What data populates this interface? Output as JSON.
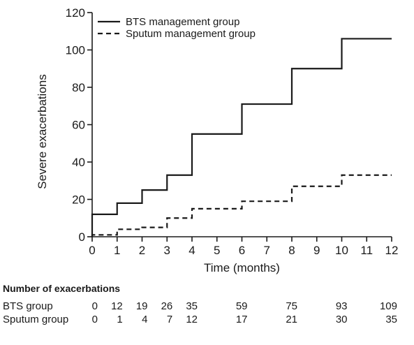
{
  "chart_data": {
    "type": "line",
    "step": true,
    "xlabel": "Time (months)",
    "ylabel": "Severe exacerbations",
    "xlim": [
      0,
      12
    ],
    "ylim": [
      0,
      120
    ],
    "x_ticks": [
      "0",
      "1",
      "2",
      "3",
      "4",
      "5",
      "6",
      "7",
      "8",
      "9",
      "10",
      "11",
      "12"
    ],
    "y_ticks": [
      "0",
      "20",
      "40",
      "60",
      "80",
      "100",
      "120"
    ],
    "grid": false,
    "legend_position": "top-left",
    "series": [
      {
        "name": "BTS management group",
        "style": "solid",
        "x": [
          0,
          1,
          2,
          3,
          4,
          6,
          8,
          10,
          12
        ],
        "y": [
          12,
          18,
          25,
          33,
          55,
          71,
          90,
          106,
          106
        ]
      },
      {
        "name": "Sputum management group",
        "style": "dashed",
        "x": [
          0,
          1,
          2,
          3,
          4,
          6,
          8,
          10,
          12
        ],
        "y": [
          1,
          4,
          5,
          10,
          15,
          19,
          27,
          33,
          33
        ]
      }
    ]
  },
  "table": {
    "title": "Number of exacerbations",
    "columns": [
      0,
      1,
      2,
      3,
      4,
      6,
      8,
      10,
      12
    ],
    "rows": [
      {
        "label": "BTS group",
        "values": [
          "0",
          "12",
          "19",
          "26",
          "35",
          "59",
          "75",
          "93",
          "109"
        ]
      },
      {
        "label": "Sputum group",
        "values": [
          "0",
          "1",
          "4",
          "7",
          "12",
          "17",
          "21",
          "30",
          "35"
        ]
      }
    ]
  },
  "colors": {
    "ink": "#1a1a1a"
  }
}
